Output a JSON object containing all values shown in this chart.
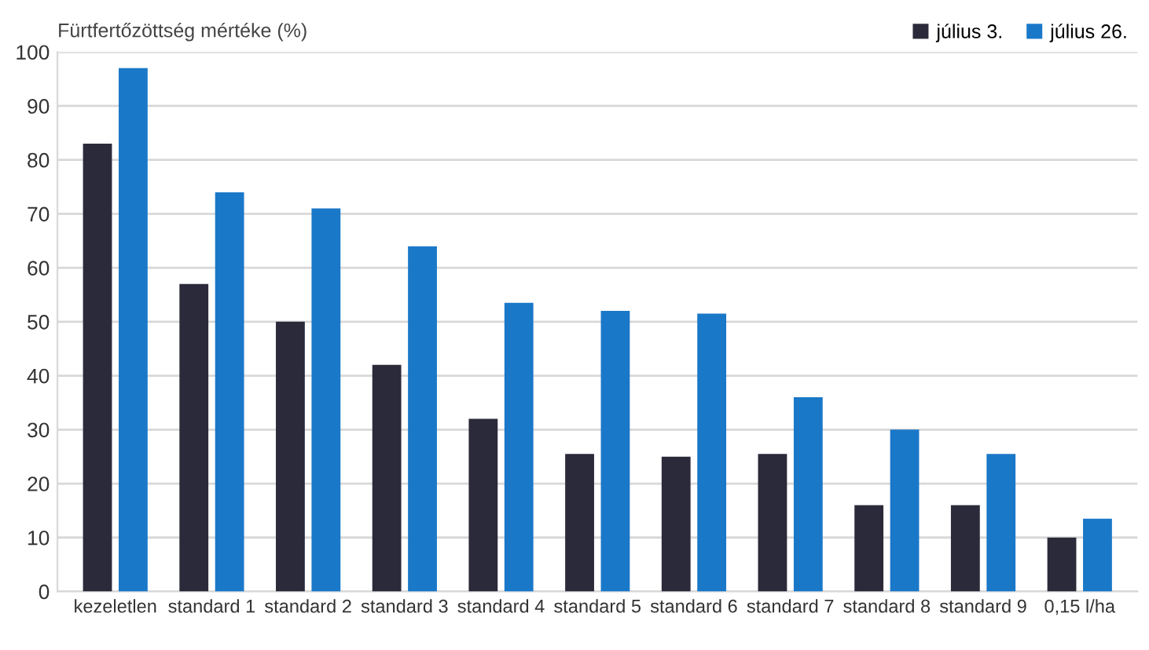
{
  "chart_data": {
    "type": "bar",
    "ylabel": "Fürtfertőzöttség mértéke (%)",
    "categories": [
      "kezeletlen",
      "standard 1",
      "standard 2",
      "standard 3",
      "standard 4",
      "standard 5",
      "standard 6",
      "standard 7",
      "standard 8",
      "standard 9",
      "0,15 l/ha"
    ],
    "series": [
      {
        "name": "július 3.",
        "color": "#2a2a3a",
        "values": [
          83,
          57,
          50,
          42,
          32,
          25.5,
          25,
          25.5,
          16,
          16,
          10
        ]
      },
      {
        "name": "július 26.",
        "color": "#1a78c8",
        "values": [
          97,
          74,
          71,
          64,
          53.5,
          52,
          51.5,
          36,
          30,
          25.5,
          13.5
        ]
      }
    ],
    "ylim": [
      0,
      100
    ],
    "yticks": [
      0,
      10,
      20,
      30,
      40,
      50,
      60,
      70,
      80,
      90,
      100
    ],
    "grid": "y",
    "legend": "top right"
  }
}
